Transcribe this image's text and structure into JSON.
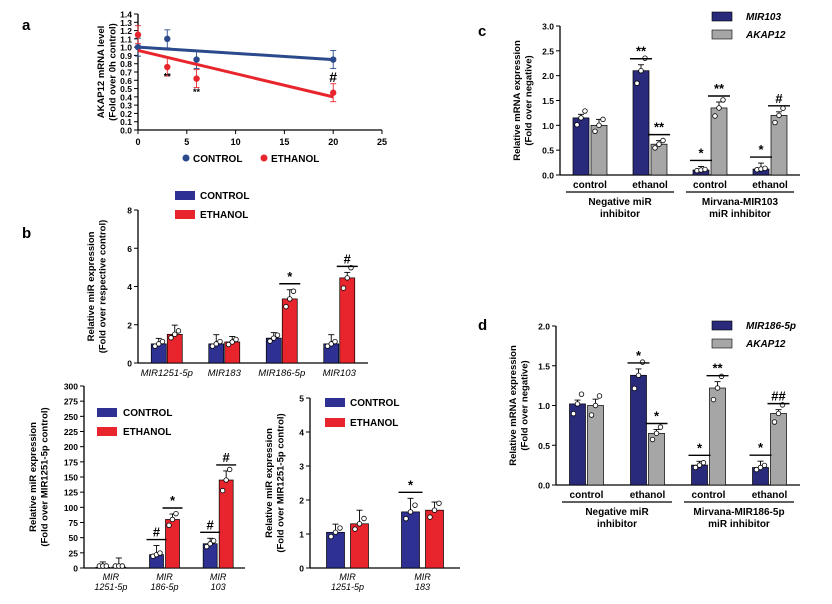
{
  "colors": {
    "control": "#2e3192",
    "ethanol": "#e8252c",
    "line_control": "#2b4a8c",
    "mir_dark": "#2a2a7a",
    "akap_grey": "#a6a6a6"
  },
  "panels": {
    "a": "a",
    "b": "b",
    "c": "c",
    "d": "d"
  },
  "chart_data": [
    {
      "id": "a",
      "type": "line",
      "ylabel_lines": [
        "AKAP12 mRNA level",
        "(Fold over 0h control)"
      ],
      "xlim": [
        0,
        25
      ],
      "xticks": [
        "0",
        "5",
        "10",
        "15",
        "20",
        "25"
      ],
      "ylim": [
        0,
        1.4
      ],
      "yticks": [
        "0.0",
        "0.1",
        "0.2",
        "0.3",
        "0.4",
        "0.5",
        "0.6",
        "0.7",
        "0.8",
        "0.9",
        "1.0",
        "1.1",
        "1.2",
        "1.3",
        "1.4"
      ],
      "legend": [
        "CONTROL",
        "ETHANOL"
      ],
      "series": [
        {
          "name": "CONTROL",
          "line": [
            [
              0,
              1.0
            ],
            [
              20,
              0.85
            ]
          ],
          "points": [
            [
              0,
              1.0
            ],
            [
              3,
              1.1
            ],
            [
              6,
              0.85
            ],
            [
              20,
              0.85
            ]
          ]
        },
        {
          "name": "ETHANOL",
          "line": [
            [
              0,
              0.96
            ],
            [
              20,
              0.4
            ]
          ],
          "points": [
            [
              0,
              1.15
            ],
            [
              3,
              0.76
            ],
            [
              6,
              0.62
            ],
            [
              20,
              0.45
            ]
          ]
        }
      ],
      "annotations": [
        {
          "x": 3,
          "y": 0.66,
          "text": "**"
        },
        {
          "x": 6,
          "y": 0.47,
          "text": "**"
        },
        {
          "x": 20,
          "y": 0.58,
          "text": "#"
        }
      ]
    },
    {
      "id": "b1",
      "type": "bar",
      "ylabel_lines": [
        "Relative miR expression",
        "(Fold over respective control)"
      ],
      "ylim": [
        0,
        8
      ],
      "yticks": [
        "0",
        "2",
        "4",
        "6",
        "8"
      ],
      "categories": [
        "MIR1251-5p",
        "MIR183",
        "MIR186-5p",
        "MIR103"
      ],
      "legend": [
        "CONTROL",
        "ETHANOL"
      ],
      "series": [
        {
          "name": "CONTROL",
          "values": [
            1.0,
            1.0,
            1.3,
            1.0
          ]
        },
        {
          "name": "ETHANOL",
          "values": [
            1.5,
            1.1,
            3.35,
            4.45
          ]
        }
      ],
      "significance": [
        {
          "category": "MIR186-5p",
          "text": "*"
        },
        {
          "category": "MIR103",
          "text": "#"
        }
      ]
    },
    {
      "id": "b2",
      "type": "bar",
      "ylabel_lines": [
        "Relative miR expression",
        "(Fold over MIR1251-5p control)"
      ],
      "ylim": [
        0,
        300
      ],
      "yticks": [
        "0",
        "25",
        "50",
        "75",
        "100",
        "125",
        "150",
        "175",
        "200",
        "225",
        "250",
        "275",
        "300"
      ],
      "categories": [
        [
          "MIR",
          "1251-5p"
        ],
        [
          "MIR",
          "186-5p"
        ],
        [
          "MIR",
          "103"
        ]
      ],
      "legend": [
        "CONTROL",
        "ETHANOL"
      ],
      "series": [
        {
          "name": "CONTROL",
          "values": [
            1,
            22,
            40
          ]
        },
        {
          "name": "ETHANOL",
          "values": [
            1.5,
            80,
            145
          ]
        }
      ],
      "significance": [
        {
          "category": 1,
          "bar": "CONTROL",
          "text": "#"
        },
        {
          "category": 1,
          "bar": "ETHANOL",
          "text": "*"
        },
        {
          "category": 2,
          "bar": "CONTROL",
          "text": "#"
        },
        {
          "category": 2,
          "bar": "ETHANOL",
          "text": "#"
        }
      ]
    },
    {
      "id": "b3",
      "type": "bar",
      "ylabel_lines": [
        "Relative miR expression",
        "(Fold over MIR1251-5p control)"
      ],
      "ylim": [
        0,
        5
      ],
      "yticks": [
        "0",
        "1",
        "2",
        "3",
        "4",
        "5"
      ],
      "categories": [
        [
          "MIR",
          "1251-5p"
        ],
        [
          "MIR",
          "183"
        ]
      ],
      "legend": [
        "CONTROL",
        "ETHANOL"
      ],
      "series": [
        {
          "name": "CONTROL",
          "values": [
            1.05,
            1.65
          ]
        },
        {
          "name": "ETHANOL",
          "values": [
            1.3,
            1.7
          ]
        }
      ],
      "significance": [
        {
          "category": 1,
          "bar": "CONTROL",
          "text": "*"
        }
      ]
    },
    {
      "id": "c",
      "type": "bar",
      "ylabel_lines": [
        "Relative mRNA expression",
        "(Fold over negative)"
      ],
      "ylim": [
        0,
        3.0
      ],
      "yticks": [
        "0.0",
        "0.5",
        "1.0",
        "1.5",
        "2.0",
        "2.5",
        "3.0"
      ],
      "categories": [
        "control",
        "ethanol",
        "control",
        "ethanol"
      ],
      "groups": [
        [
          "Negative miR",
          "inhibitor"
        ],
        [
          "Mirvana-MIR103",
          "miR inhibitor"
        ]
      ],
      "legend": [
        "MIR103",
        "AKAP12"
      ],
      "series": [
        {
          "name": "MIR103",
          "values": [
            1.15,
            2.1,
            0.1,
            0.12
          ]
        },
        {
          "name": "AKAP12",
          "values": [
            1.0,
            0.62,
            1.35,
            1.2
          ]
        }
      ],
      "significance": [
        {
          "category": 1,
          "bar": "MIR103",
          "text": "**"
        },
        {
          "category": 1,
          "bar": "AKAP12",
          "text": "**"
        },
        {
          "category": 2,
          "bar": "MIR103",
          "text": "*"
        },
        {
          "category": 2,
          "bar": "AKAP12",
          "text": "**"
        },
        {
          "category": 3,
          "bar": "MIR103",
          "text": "*"
        },
        {
          "category": 3,
          "bar": "AKAP12",
          "text": "#"
        }
      ]
    },
    {
      "id": "d",
      "type": "bar",
      "ylabel_lines": [
        "Relative mRNA expression",
        "(Fold over negative)"
      ],
      "ylim": [
        0,
        2.0
      ],
      "yticks": [
        "0.0",
        "0.5",
        "1.0",
        "1.5",
        "2.0"
      ],
      "categories": [
        "control",
        "ethanol",
        "control",
        "ethanol"
      ],
      "groups": [
        [
          "Negative miR",
          "inhibitor"
        ],
        [
          "Mirvana-MIR186-5p",
          "miR inhibitor"
        ]
      ],
      "legend": [
        "MIR186-5p",
        "AKAP12"
      ],
      "series": [
        {
          "name": "MIR186-5p",
          "values": [
            1.02,
            1.38,
            0.25,
            0.22
          ]
        },
        {
          "name": "AKAP12",
          "values": [
            1.0,
            0.65,
            1.22,
            0.9
          ]
        }
      ],
      "significance": [
        {
          "category": 1,
          "bar": "MIR186-5p",
          "text": "*"
        },
        {
          "category": 1,
          "bar": "AKAP12",
          "text": "*"
        },
        {
          "category": 2,
          "bar": "MIR186-5p",
          "text": "*"
        },
        {
          "category": 2,
          "bar": "AKAP12",
          "text": "**"
        },
        {
          "category": 3,
          "bar": "MIR186-5p",
          "text": "*"
        },
        {
          "category": 3,
          "bar": "AKAP12",
          "text": "##"
        }
      ]
    }
  ]
}
